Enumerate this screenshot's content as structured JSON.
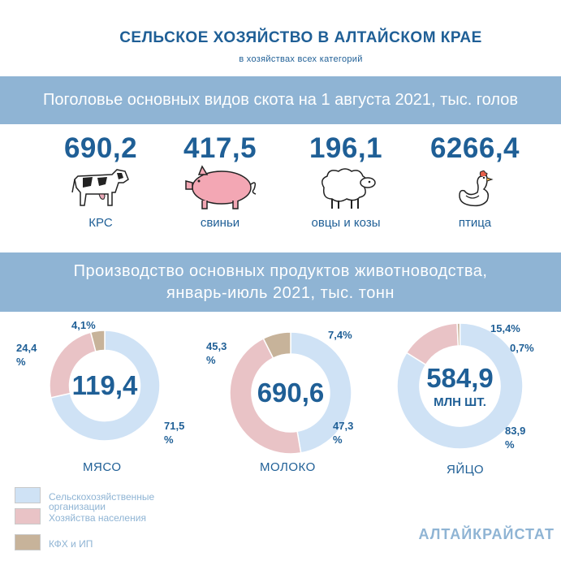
{
  "title": "СЕЛЬСКОЕ ХОЗЯЙСТВО В АЛТАЙСКОМ КРАЕ",
  "subtitle": "в хозяйствах всех категорий",
  "livestock": {
    "header": "Поголовье основных видов скота на 1 августа 2021, тыс. голов",
    "items": [
      {
        "value": "690,2",
        "label": "КРС",
        "icon": "cow-icon"
      },
      {
        "value": "417,5",
        "label": "свиньи",
        "icon": "pig-icon"
      },
      {
        "value": "196,1",
        "label": "овцы и козы",
        "icon": "sheep-icon"
      },
      {
        "value": "6266,4",
        "label": "птица",
        "icon": "hen-icon"
      }
    ]
  },
  "production": {
    "header_line1": "Производство основных продуктов животноводства,",
    "header_line2": "январь-июль 2021, тыс. тонн"
  },
  "colors": {
    "agri_orgs": "#cfe2f5",
    "households": "#e9c3c6",
    "farms": "#c7b39a",
    "band": "#8fb4d4",
    "text": "#1f5f96"
  },
  "legend": [
    {
      "label": "Сельскохозяйственные организации",
      "color": "#cfe2f5"
    },
    {
      "label": "Хозяйства населения",
      "color": "#e9c3c6"
    },
    {
      "label": "КФХ и ИП",
      "color": "#c7b39a"
    }
  ],
  "chart_data": [
    {
      "type": "pie",
      "name": "МЯСО",
      "center_value": "119,4",
      "center_unit": "",
      "categories": [
        "Сельскохозяйственные организации",
        "Хозяйства населения",
        "КФХ и ИП"
      ],
      "values": [
        71.5,
        24.4,
        4.1
      ],
      "labels": [
        "71,5 %",
        "24,4 %",
        "4,1%"
      ]
    },
    {
      "type": "pie",
      "name": "МОЛОКО",
      "center_value": "690,6",
      "center_unit": "",
      "categories": [
        "Сельскохозяйственные организации",
        "Хозяйства населения",
        "КФХ и ИП"
      ],
      "values": [
        47.3,
        45.3,
        7.4
      ],
      "labels": [
        "47,3 %",
        "45,3 %",
        "7,4%"
      ]
    },
    {
      "type": "pie",
      "name": "ЯЙЦО",
      "center_value": "584,9",
      "center_unit": "МЛН ШТ.",
      "categories": [
        "Сельскохозяйственные организации",
        "Хозяйства населения",
        "КФХ и ИП"
      ],
      "values": [
        83.9,
        15.4,
        0.7
      ],
      "labels": [
        "83,9 %",
        "15,4%",
        "0,7%"
      ]
    }
  ],
  "brand": "АЛТАЙКРАЙСТАТ"
}
